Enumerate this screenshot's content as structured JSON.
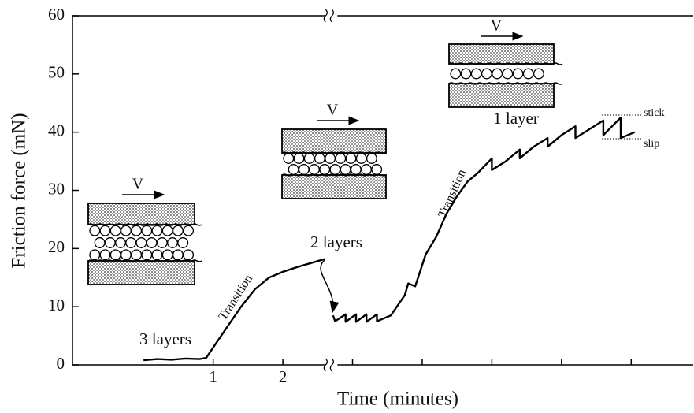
{
  "chart_data": {
    "type": "line",
    "xlabel": "Time (minutes)",
    "ylabel": "Friction force (mN)",
    "xlim": [
      -1.02,
      7.89
    ],
    "ylim": [
      0,
      60
    ],
    "xticks": [
      1,
      2
    ],
    "minor_xticks": [
      3,
      4,
      5,
      6,
      7
    ],
    "yticks": [
      0,
      10,
      20,
      30,
      40,
      50,
      60
    ],
    "axis_break": 2.67,
    "series": [
      {
        "color": "#000000",
        "x": [
          0,
          0.2,
          0.4,
          0.6,
          0.8,
          0.9,
          1.0,
          1.2,
          1.4,
          1.6,
          1.8,
          2.0,
          2.2,
          2.4,
          2.6,
          null,
          2.72,
          2.75,
          2.9,
          2.9,
          3.05,
          3.05,
          3.2,
          3.2,
          3.35,
          3.35,
          3.55,
          3.75,
          3.8,
          3.9,
          4.05,
          4.2,
          4.35,
          4.5,
          4.65,
          4.8,
          5.0,
          5.0,
          5.2,
          5.4,
          5.4,
          5.6,
          5.8,
          5.8,
          6.0,
          6.2,
          6.2,
          6.4,
          6.6,
          6.6,
          6.85,
          6.85,
          7.05
        ],
        "values": [
          0.8,
          1.0,
          0.9,
          1.1,
          1.0,
          1.2,
          3,
          6.5,
          10,
          13,
          15,
          16,
          16.8,
          17.5,
          18.2,
          null,
          8.5,
          7.5,
          8.7,
          7.4,
          8.7,
          7.4,
          8.7,
          7.4,
          8.7,
          7.5,
          8.5,
          12,
          14,
          13.5,
          19,
          22,
          26,
          29,
          31.5,
          33,
          35.5,
          33.5,
          35,
          37,
          35.5,
          37.5,
          39,
          37.5,
          39.5,
          41,
          39,
          40.5,
          42,
          39.5,
          42.5,
          39,
          40
        ]
      }
    ],
    "annotations": [
      "3 layers",
      "Transition",
      "2 layers",
      "Transition",
      "1 layer",
      "stick",
      "slip"
    ],
    "diagram_labels": [
      "V",
      "V",
      "V"
    ]
  }
}
